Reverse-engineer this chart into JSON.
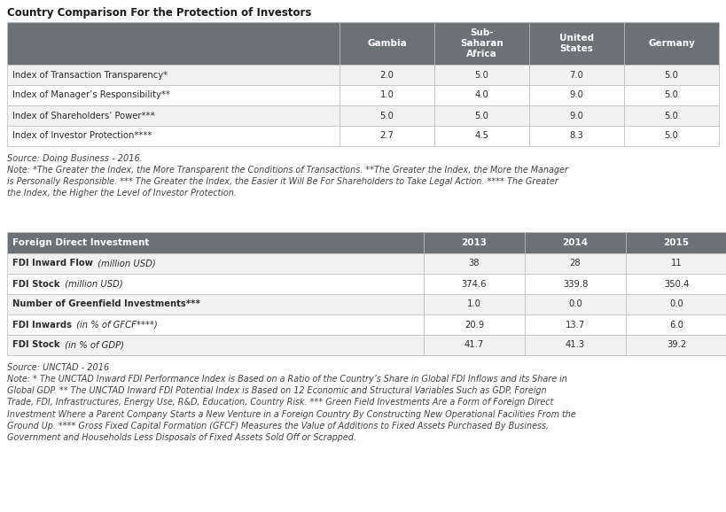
{
  "title": "Country Comparison For the Protection of Investors",
  "table1_header": [
    "",
    "Gambia",
    "Sub-\nSaharan\nAfrica",
    "United\nStates",
    "Germany"
  ],
  "table1_rows": [
    [
      "Index of Transaction Transparency*",
      "2.0",
      "5.0",
      "7.0",
      "5.0"
    ],
    [
      "Index of Manager’s Responsibility**",
      "1.0",
      "4.0",
      "9.0",
      "5.0"
    ],
    [
      "Index of Shareholders’ Power***",
      "5.0",
      "5.0",
      "9.0",
      "5.0"
    ],
    [
      "Index of Investor Protection****",
      "2.7",
      "4.5",
      "8.3",
      "5.0"
    ]
  ],
  "source1": "Source: Doing Business - 2016.",
  "note1": "Note: *The Greater the Index, the More Transparent the Conditions of Transactions. **The Greater the Index, the More the Manager\nis Personally Responsible. *** The Greater the Index, the Easier it Will Be For Shareholders to Take Legal Action. **** The Greater\nthe Index, the Higher the Level of Investor Protection.",
  "table2_header": [
    "Foreign Direct Investment",
    "2013",
    "2014",
    "2015"
  ],
  "table2_rows": [
    [
      "FDI Inward Flow",
      "(million USD)",
      "38",
      "28",
      "11"
    ],
    [
      "FDI Stock",
      "(million USD)",
      "374.6",
      "339.8",
      "350.4"
    ],
    [
      "Number of Greenfield Investments***",
      "",
      "1.0",
      "0.0",
      "0.0"
    ],
    [
      "FDI Inwards",
      "(in % of GFCF****)",
      "20.9",
      "13.7",
      "6.0"
    ],
    [
      "FDI Stock",
      "(in % of GDP)",
      "41.7",
      "41.3",
      "39.2"
    ]
  ],
  "source2": "Source: UNCTAD - 2016",
  "note2": "Note: * The UNCTAD Inward FDI Performance Index is Based on a Ratio of the Country’s Share in Global FDI Inflows and its Share in\nGlobal GDP. ** The UNCTAD Inward FDI Potential Index is Based on 12 Economic and Structural Variables Such as GDP, Foreign\nTrade, FDI, Infrastructures, Energy Use, R&D, Education, Country Risk. *** Green Field Investments Are a Form of Foreign Direct\nInvestment Where a Parent Company Starts a New Venture in a Foreign Country By Constructing New Operational Facilities From the\nGround Up. **** Gross Fixed Capital Formation (GFCF) Measures the Value of Additions to Fixed Assets Purchased By Business,\nGovernment and Households Less Disposals of Fixed Assets Sold Off or Scrapped.",
  "header_bg": "#6b7175",
  "header_fg": "#ffffff",
  "row_bg_odd": "#ffffff",
  "row_bg_even": "#f2f2f2",
  "border_color": "#cccccc",
  "text_color": "#2c2c2c",
  "note_color": "#444444",
  "title_color": "#1a1a1a"
}
